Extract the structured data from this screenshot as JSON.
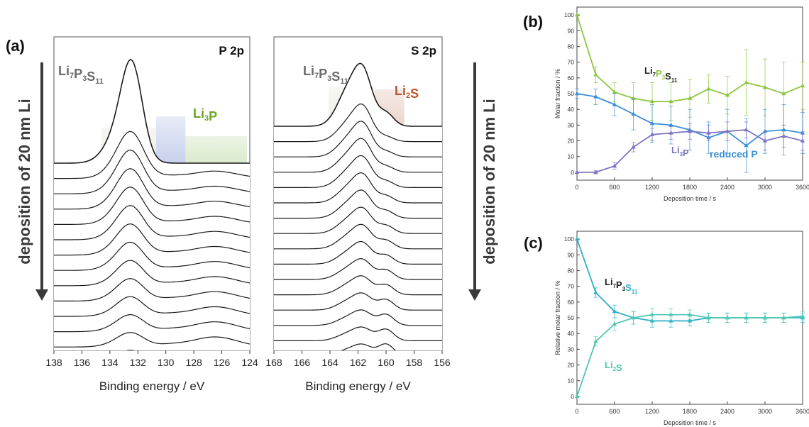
{
  "panel_labels": {
    "a": "(a)",
    "b": "(b)",
    "c": "(c)"
  },
  "colors": {
    "green": "#8dc63f",
    "blue": "#3c8fd6",
    "purple": "#7b74c4",
    "teal": "#2bb0c8",
    "mint": "#4fc9b0",
    "li2s_band": "#b0532b",
    "matrix_band": "#b8bba0",
    "li3p_band": "#5ba61e",
    "reduced_band": "#3e5fc0"
  },
  "chart_data": [
    {
      "type": "line",
      "panel": "a-left",
      "title": "P 2p",
      "xlabel": "Binding energy / eV",
      "xticks": [
        "138",
        "136",
        "134",
        "132",
        "130",
        "128",
        "126",
        "124"
      ],
      "xlim": [
        138,
        124
      ],
      "spectra_count": 18,
      "annotations": [
        {
          "text": "Li",
          "sub": "7",
          "text2": "P",
          "sub2": "3",
          "text3": "S",
          "sub3": "11",
          "color": "#6b6b6b"
        },
        {
          "text": "Li",
          "sub": "3",
          "text2": "P",
          "color": "#6aa524"
        }
      ],
      "side_label": "deposition of 20 nm Li",
      "bands": [
        [
          134.6,
          130.7
        ],
        [
          130.7,
          128.6
        ],
        [
          128.6,
          124.2
        ]
      ]
    },
    {
      "type": "line",
      "panel": "a-right",
      "title": "S 2p",
      "xlabel": "Binding energy / eV",
      "xticks": [
        "168",
        "166",
        "164",
        "162",
        "160",
        "158",
        "156"
      ],
      "xlim": [
        168,
        156
      ],
      "spectra_count": 18,
      "annotations": [
        {
          "text": "Li",
          "sub": "7",
          "text2": "P",
          "sub2": "3",
          "text3": "S",
          "sub3": "11",
          "color": "#6b6b6b"
        },
        {
          "text": "Li",
          "sub": "2",
          "text2": "S",
          "color": "#b8552d"
        }
      ],
      "side_label": "deposition of 20 nm Li",
      "bands": [
        [
          164.1,
          160.8
        ],
        [
          160.8,
          158.7
        ]
      ]
    },
    {
      "type": "line",
      "panel": "b",
      "xlabel": "Deposition time / s",
      "ylabel": "Molar fraction / %",
      "xlim": [
        0,
        3600
      ],
      "ylim": [
        -5,
        105
      ],
      "xticks": [
        0,
        600,
        1200,
        1800,
        2400,
        3000,
        3600
      ],
      "yticks": [
        0,
        10,
        20,
        30,
        40,
        50,
        60,
        70,
        80,
        90,
        100
      ],
      "x": [
        0,
        300,
        600,
        900,
        1200,
        1500,
        1800,
        2100,
        2400,
        2700,
        3000,
        3300,
        3600
      ],
      "series": [
        {
          "name": "Li7P3S11",
          "color": "#8dc63f",
          "values": [
            100,
            62,
            51,
            47,
            45,
            45,
            47,
            53,
            49,
            57,
            54,
            50,
            55
          ],
          "errors": [
            0,
            5,
            6,
            10,
            12,
            12,
            12,
            9,
            12,
            21,
            18,
            20,
            15
          ]
        },
        {
          "name": "reduced P",
          "color": "#3c8fd6",
          "values": [
            50,
            48,
            43,
            37,
            31,
            30,
            27,
            22,
            26,
            17,
            26,
            27,
            25
          ],
          "errors": [
            3,
            5,
            7,
            10,
            12,
            12,
            13,
            10,
            14,
            17,
            14,
            16,
            13
          ]
        },
        {
          "name": "Li3P",
          "color": "#7b74c4",
          "values": [
            0,
            0,
            4,
            16,
            24,
            25,
            26,
            25,
            26,
            27,
            20,
            23,
            20
          ],
          "errors": [
            0,
            1,
            2,
            3,
            4,
            4,
            5,
            5,
            6,
            5,
            6,
            7,
            6
          ]
        }
      ],
      "annotations": [
        {
          "text": "Li",
          "sub": "7",
          "text2": "P",
          "sub2": "3",
          "text3": "S",
          "sub3": "11"
        },
        {
          "text": "Li",
          "sub": "3",
          "text2": "P"
        },
        {
          "text": "reduced P"
        }
      ]
    },
    {
      "type": "line",
      "panel": "c",
      "xlabel": "Deposition time / s",
      "ylabel": "Relative molar fraction / %",
      "xlim": [
        0,
        3600
      ],
      "ylim": [
        -5,
        105
      ],
      "xticks": [
        0,
        600,
        1200,
        1800,
        2400,
        3000,
        3600
      ],
      "yticks": [
        0,
        10,
        20,
        30,
        40,
        50,
        60,
        70,
        80,
        90,
        100
      ],
      "x": [
        0,
        300,
        600,
        900,
        1200,
        1500,
        1800,
        2100,
        2400,
        2700,
        3000,
        3300,
        3600
      ],
      "series": [
        {
          "name": "Li7P3S11",
          "color": "#2bb0c8",
          "values": [
            100,
            66,
            54,
            50,
            48,
            48,
            48,
            50,
            50,
            50,
            50,
            50,
            50
          ],
          "errors": [
            0,
            3,
            4,
            4,
            4,
            4,
            3,
            3,
            3,
            3,
            3,
            3,
            3
          ]
        },
        {
          "name": "Li2S",
          "color": "#4fc9b0",
          "values": [
            0,
            35,
            46,
            50,
            52,
            52,
            52,
            50,
            50,
            50,
            50,
            50,
            51
          ],
          "errors": [
            0,
            3,
            4,
            4,
            4,
            4,
            3,
            3,
            3,
            3,
            3,
            3,
            3
          ]
        }
      ],
      "annotations": [
        {
          "text": "Li",
          "sub": "7",
          "text2": "P",
          "sub2": "3",
          "text3": "S",
          "sub3": "11"
        },
        {
          "text": "Li",
          "sub": "2",
          "text2": "S"
        }
      ]
    }
  ]
}
